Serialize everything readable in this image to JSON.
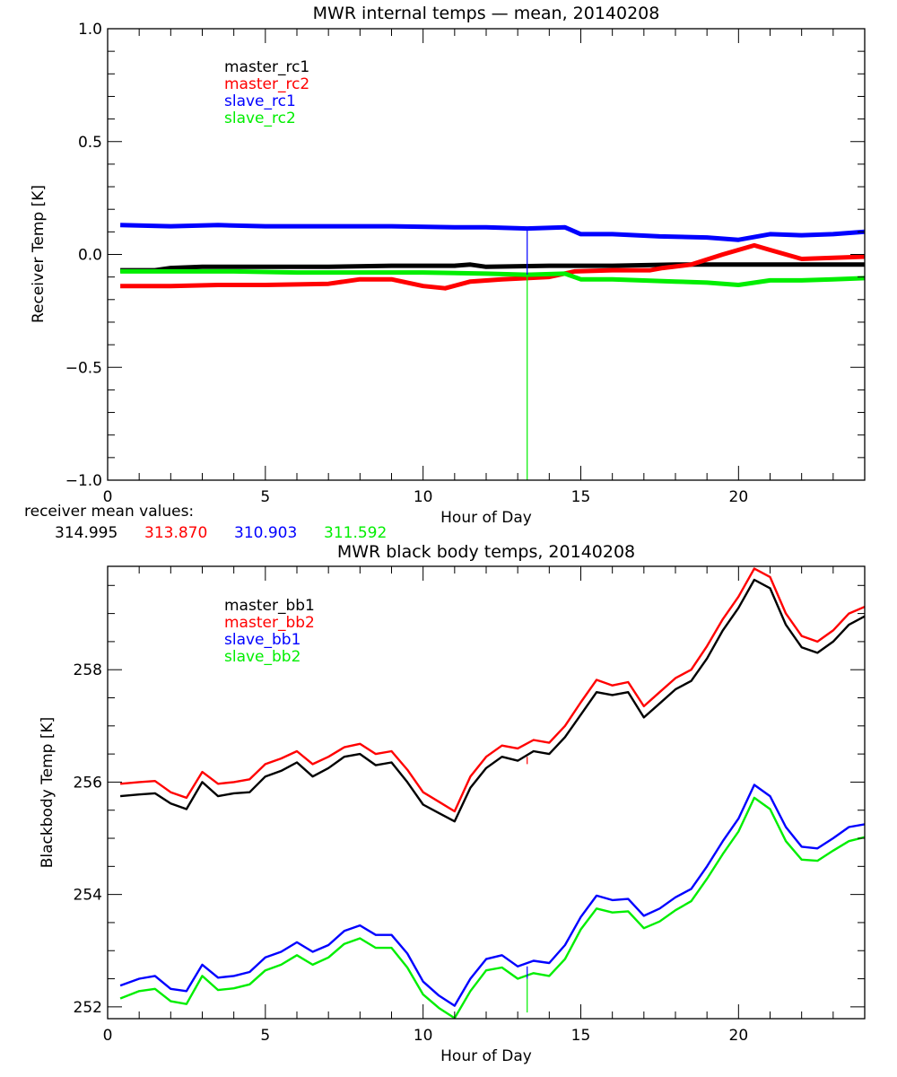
{
  "chart_data": [
    {
      "type": "line",
      "title": "MWR internal temps — mean, 20140208",
      "xlabel": "Hour of Day",
      "ylabel": "Receiver Temp [K]",
      "xlim": [
        0,
        24
      ],
      "ylim": [
        -1.0,
        1.0
      ],
      "xticks": [
        0,
        5,
        10,
        15,
        20
      ],
      "xtick_labels": [
        "0",
        "5",
        "10",
        "15",
        "20"
      ],
      "yticks": [
        -1.0,
        -0.5,
        0.0,
        0.5,
        1.0
      ],
      "ytick_labels": [
        "−1.0",
        "−0.5",
        "0.0",
        "0.5",
        "1.0"
      ],
      "grid": false,
      "legend_position": "top-left",
      "series": [
        {
          "name": "master_rc1",
          "color": "#000000",
          "x": [
            0.4,
            1.5,
            2.0,
            3.0,
            5.0,
            7.0,
            9.0,
            11.0,
            11.5,
            12.0,
            14.0,
            16.0,
            18.0,
            20.0,
            22.0,
            24.0
          ],
          "y": [
            -0.07,
            -0.07,
            -0.06,
            -0.055,
            -0.055,
            -0.055,
            -0.05,
            -0.05,
            -0.045,
            -0.055,
            -0.05,
            -0.05,
            -0.045,
            -0.045,
            -0.045,
            -0.045
          ]
        },
        {
          "name": "master_rc2",
          "color": "#ff0000",
          "x": [
            0.4,
            2.0,
            3.5,
            5.0,
            7.0,
            8.0,
            9.0,
            10.0,
            10.7,
            11.5,
            12.5,
            14.0,
            14.8,
            16.0,
            17.2,
            17.6,
            18.5,
            19.5,
            20.5,
            21.0,
            22.0,
            23.0,
            24.0
          ],
          "y": [
            -0.14,
            -0.14,
            -0.135,
            -0.135,
            -0.13,
            -0.11,
            -0.11,
            -0.14,
            -0.15,
            -0.12,
            -0.11,
            -0.1,
            -0.075,
            -0.07,
            -0.07,
            -0.06,
            -0.045,
            -0.0,
            0.04,
            0.02,
            -0.02,
            -0.015,
            -0.01
          ]
        },
        {
          "name": "slave_rc1",
          "color": "#0000ff",
          "x": [
            0.4,
            2.0,
            3.5,
            5.0,
            7.0,
            9.0,
            11.0,
            12.0,
            13.3,
            14.5,
            15.0,
            16.0,
            17.5,
            19.0,
            20.0,
            21.0,
            22.0,
            23.0,
            24.0
          ],
          "y": [
            0.13,
            0.125,
            0.13,
            0.125,
            0.125,
            0.125,
            0.12,
            0.12,
            0.115,
            0.12,
            0.09,
            0.09,
            0.08,
            0.075,
            0.065,
            0.09,
            0.085,
            0.09,
            0.1
          ]
        },
        {
          "name": "slave_rc2",
          "color": "#00ee00",
          "x": [
            0.4,
            2.0,
            4.0,
            6.0,
            8.0,
            10.0,
            12.0,
            13.3,
            14.5,
            15.0,
            16.0,
            18.0,
            19.0,
            20.0,
            21.0,
            22.0,
            23.0,
            24.0
          ],
          "y": [
            -0.075,
            -0.075,
            -0.075,
            -0.08,
            -0.08,
            -0.08,
            -0.085,
            -0.09,
            -0.085,
            -0.11,
            -0.11,
            -0.12,
            -0.125,
            -0.135,
            -0.115,
            -0.115,
            -0.11,
            -0.105
          ]
        }
      ],
      "spikes": [
        {
          "x": 13.3,
          "y_from": 0.115,
          "y_to": -0.09,
          "color": "#0000ff"
        },
        {
          "x": 13.3,
          "y_from": -0.09,
          "y_to": -1.0,
          "color": "#00ee00"
        }
      ],
      "annotation": {
        "label": "receiver mean values:",
        "values": [
          {
            "text": "314.995",
            "color": "#000000"
          },
          {
            "text": "313.870",
            "color": "#ff0000"
          },
          {
            "text": "310.903",
            "color": "#0000ff"
          },
          {
            "text": "311.592",
            "color": "#00ee00"
          }
        ]
      }
    },
    {
      "type": "line",
      "title": "MWR black body temps, 20140208",
      "xlabel": "Hour of Day",
      "ylabel": "Blackbody Temp [K]",
      "xlim": [
        0,
        24
      ],
      "ylim": [
        251.79,
        259.84
      ],
      "xticks": [
        0,
        5,
        10,
        15,
        20
      ],
      "xtick_labels": [
        "0",
        "5",
        "10",
        "15",
        "20"
      ],
      "yticks": [
        252,
        254,
        256,
        258
      ],
      "ytick_labels": [
        "252",
        "254",
        "256",
        "258"
      ],
      "grid": false,
      "legend_position": "top-left",
      "series": [
        {
          "name": "master_bb1",
          "color": "#000000",
          "x": [
            0.4,
            1.0,
            1.5,
            2.0,
            2.5,
            3.0,
            3.5,
            4.0,
            4.5,
            5.0,
            5.5,
            6.0,
            6.5,
            7.0,
            7.5,
            8.0,
            8.5,
            9.0,
            9.5,
            10.0,
            10.5,
            11.0,
            11.5,
            12.0,
            12.5,
            13.0,
            13.5,
            14.0,
            14.5,
            15.0,
            15.5,
            16.0,
            16.5,
            17.0,
            17.5,
            18.0,
            18.5,
            19.0,
            19.5,
            20.0,
            20.5,
            21.0,
            21.5,
            22.0,
            22.5,
            23.0,
            23.5,
            24.0
          ],
          "y": [
            255.75,
            255.78,
            255.8,
            255.62,
            255.52,
            256.0,
            255.75,
            255.8,
            255.82,
            256.1,
            256.2,
            256.35,
            256.1,
            256.25,
            256.45,
            256.5,
            256.3,
            256.35,
            256.0,
            255.6,
            255.45,
            255.3,
            255.9,
            256.25,
            256.45,
            256.38,
            256.55,
            256.5,
            256.8,
            257.2,
            257.6,
            257.55,
            257.6,
            257.15,
            257.4,
            257.65,
            257.8,
            258.2,
            258.7,
            259.1,
            259.6,
            259.45,
            258.8,
            258.4,
            258.3,
            258.5,
            258.8,
            258.95
          ]
        },
        {
          "name": "master_bb2",
          "color": "#ff0000",
          "x": [
            0.4,
            1.0,
            1.5,
            2.0,
            2.5,
            3.0,
            3.5,
            4.0,
            4.5,
            5.0,
            5.5,
            6.0,
            6.5,
            7.0,
            7.5,
            8.0,
            8.5,
            9.0,
            9.5,
            10.0,
            10.5,
            11.0,
            11.5,
            12.0,
            12.5,
            13.0,
            13.5,
            14.0,
            14.5,
            15.0,
            15.5,
            16.0,
            16.5,
            17.0,
            17.5,
            18.0,
            18.5,
            19.0,
            19.5,
            20.0,
            20.5,
            21.0,
            21.5,
            22.0,
            22.5,
            23.0,
            23.5,
            24.0
          ],
          "y": [
            255.97,
            256.0,
            256.02,
            255.82,
            255.72,
            256.18,
            255.97,
            256.0,
            256.05,
            256.32,
            256.42,
            256.55,
            256.32,
            256.45,
            256.62,
            256.68,
            256.5,
            256.55,
            256.22,
            255.82,
            255.65,
            255.48,
            256.1,
            256.45,
            256.65,
            256.6,
            256.75,
            256.7,
            257.0,
            257.42,
            257.82,
            257.72,
            257.78,
            257.35,
            257.6,
            257.85,
            258.0,
            258.42,
            258.9,
            259.3,
            259.8,
            259.65,
            259.0,
            258.6,
            258.5,
            258.7,
            259.0,
            259.12
          ]
        },
        {
          "name": "slave_bb1",
          "color": "#0000ff",
          "x": [
            0.4,
            1.0,
            1.5,
            2.0,
            2.5,
            3.0,
            3.5,
            4.0,
            4.5,
            5.0,
            5.5,
            6.0,
            6.5,
            7.0,
            7.5,
            8.0,
            8.5,
            9.0,
            9.5,
            10.0,
            10.5,
            11.0,
            11.5,
            12.0,
            12.5,
            13.0,
            13.5,
            14.0,
            14.5,
            15.0,
            15.5,
            16.0,
            16.5,
            17.0,
            17.5,
            18.0,
            18.5,
            19.0,
            19.5,
            20.0,
            20.5,
            21.0,
            21.5,
            22.0,
            22.5,
            23.0,
            23.5,
            24.0
          ],
          "y": [
            252.38,
            252.5,
            252.55,
            252.32,
            252.28,
            252.75,
            252.52,
            252.55,
            252.62,
            252.88,
            252.98,
            253.15,
            252.98,
            253.1,
            253.35,
            253.45,
            253.28,
            253.28,
            252.95,
            252.45,
            252.2,
            252.02,
            252.5,
            252.85,
            252.92,
            252.72,
            252.82,
            252.78,
            253.1,
            253.6,
            253.98,
            253.9,
            253.92,
            253.62,
            253.75,
            253.95,
            254.1,
            254.5,
            254.95,
            255.35,
            255.95,
            255.75,
            255.2,
            254.85,
            254.82,
            255.0,
            255.2,
            255.25
          ]
        },
        {
          "name": "slave_bb2",
          "color": "#00ee00",
          "x": [
            0.4,
            1.0,
            1.5,
            2.0,
            2.5,
            3.0,
            3.5,
            4.0,
            4.5,
            5.0,
            5.5,
            6.0,
            6.5,
            7.0,
            7.5,
            8.0,
            8.5,
            9.0,
            9.5,
            10.0,
            10.5,
            11.0,
            11.5,
            12.0,
            12.5,
            13.0,
            13.5,
            14.0,
            14.5,
            15.0,
            15.5,
            16.0,
            16.5,
            17.0,
            17.5,
            18.0,
            18.5,
            19.0,
            19.5,
            20.0,
            20.5,
            21.0,
            21.5,
            22.0,
            22.5,
            23.0,
            23.5,
            24.0
          ],
          "y": [
            252.15,
            252.28,
            252.32,
            252.1,
            252.05,
            252.55,
            252.3,
            252.33,
            252.4,
            252.65,
            252.75,
            252.92,
            252.75,
            252.88,
            253.12,
            253.22,
            253.05,
            253.05,
            252.7,
            252.22,
            251.98,
            251.8,
            252.28,
            252.65,
            252.7,
            252.5,
            252.6,
            252.55,
            252.85,
            253.38,
            253.75,
            253.68,
            253.7,
            253.4,
            253.52,
            253.72,
            253.88,
            254.28,
            254.72,
            255.12,
            255.72,
            255.52,
            254.95,
            254.62,
            254.6,
            254.78,
            254.95,
            255.02
          ]
        }
      ],
      "spikes": [
        {
          "x": 13.3,
          "y_from": 256.45,
          "y_to": 256.32,
          "color": "#ff0000"
        },
        {
          "x": 13.3,
          "y_from": 252.72,
          "y_to": 252.5,
          "color": "#0000ff"
        },
        {
          "x": 13.3,
          "y_from": 252.5,
          "y_to": 251.9,
          "color": "#00ee00"
        }
      ]
    }
  ]
}
